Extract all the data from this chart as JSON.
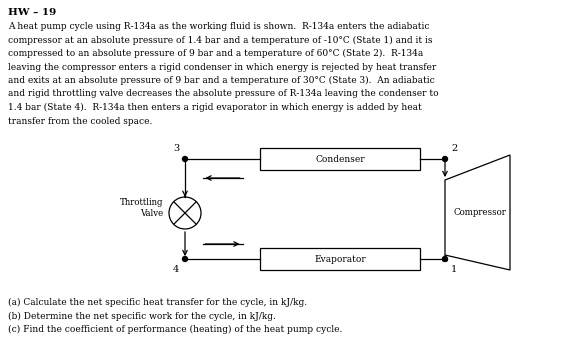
{
  "title": "HW – 19",
  "paragraph": "A heat pump cycle using R-134a as the working fluid is shown.  R-134a enters the adiabatic compressor at an absolute pressure of 1.4 bar and a temperature of -10°C (State 1) and it is compressed to an absolute pressure of 9 bar and a temperature of 60°C (State 2).  R-134a leaving the compressor enters a rigid condenser in which energy is rejected by heat transfer and exits at an absolute pressure of 9 bar and a temperature of 30°C (State 3).  An adiabatic and rigid throttling valve decreases the absolute pressure of R-134a leaving the condenser to 1.4 bar (State 4).  R-134a then enters a rigid evaporator in which energy is added by heat transfer from the cooled space.",
  "questions": [
    "(a) Calculate the net specific heat transfer for the cycle, in kJ/kg.",
    "(b) Determine the net specific work for the cycle, in kJ/kg.",
    "(c) Find the coefficient of performance (heating) of the heat pump cycle."
  ],
  "bg_color": "#ffffff",
  "text_color": "#000000",
  "line_color": "#000000",
  "compressor_label": "Compressor",
  "condenser_label": "Condenser",
  "evaporator_label": "Evaporator",
  "throttling_label": "Throttling\nValve",
  "node_labels": [
    "1",
    "2",
    "3",
    "4"
  ],
  "title_fontsize": 7.5,
  "body_fontsize": 6.5,
  "question_fontsize": 6.5
}
